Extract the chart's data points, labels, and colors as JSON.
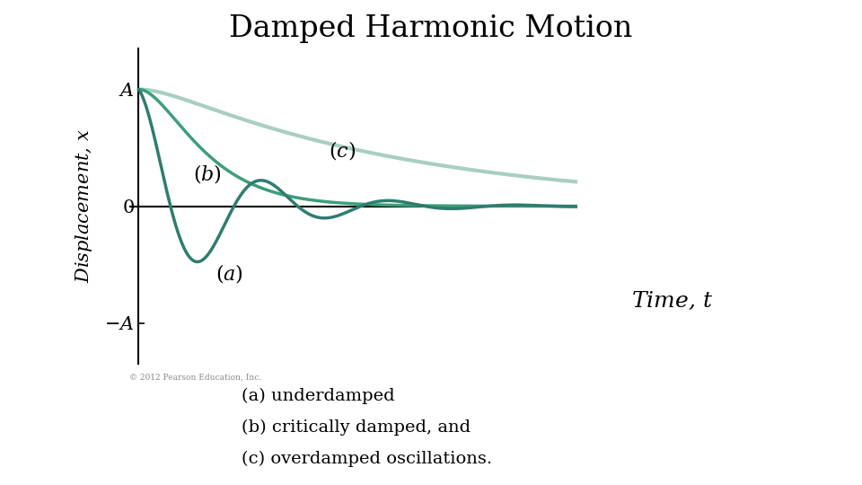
{
  "title": "Damped Harmonic Motion",
  "title_fontsize": 24,
  "xlabel": "Time, $t$",
  "ylabel": "Displacement, $x$",
  "xlabel_fontsize": 18,
  "ylabel_fontsize": 15,
  "background_color": "#ffffff",
  "color_underdamped": "#2e7d6e",
  "color_critically": "#3d9e7a",
  "color_overdamped": "#a8cfc0",
  "ytick_labels": [
    "$-A$",
    "$0$",
    "$A$"
  ],
  "ytick_values": [
    -1.0,
    0.0,
    1.0
  ],
  "copyright_text": "© 2012 Pearson Education, Inc.",
  "caption_lines": [
    "(a) underdamped",
    "(b) critically damped, and",
    "(c) overdamped oscillations."
  ],
  "caption_fontsize": 14,
  "label_a": "$(a)$",
  "label_b": "$(b)$",
  "label_c": "$(c)$",
  "label_fontsize": 16,
  "t_max": 14.0,
  "underdamped_gamma": 0.38,
  "underdamped_omega": 1.55,
  "critically_gamma": 0.85,
  "overdamped_alpha1": 0.12,
  "overdamped_alpha2": 1.2
}
